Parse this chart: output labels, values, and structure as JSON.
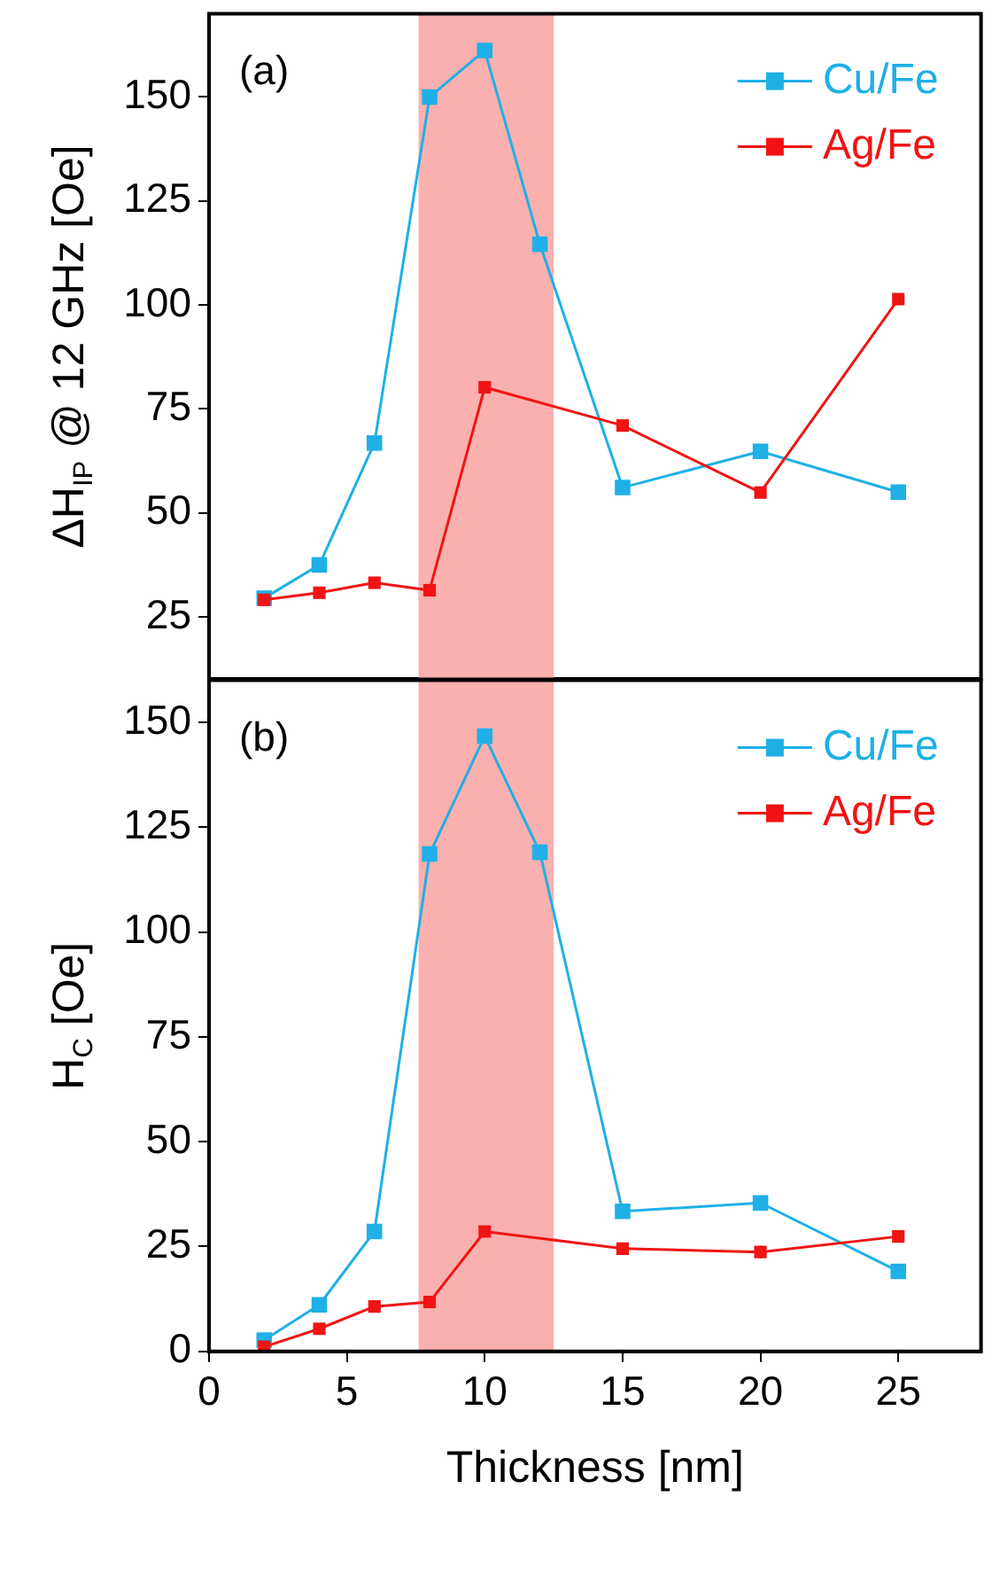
{
  "chart_data": [
    {
      "type": "line",
      "ylabel": "ΔH$_{IP}$ @ 12 GHz [Oe]",
      "annotations": [
        "(a)"
      ],
      "x": [
        2,
        4,
        6,
        8,
        10,
        12,
        15,
        20,
        25
      ],
      "xlim": [
        0,
        28
      ],
      "xticks": [
        0,
        5,
        10,
        15,
        20,
        25
      ],
      "ylim": [
        10,
        170
      ],
      "yticks": [
        25,
        50,
        75,
        100,
        125,
        150
      ],
      "tick_labels": "y",
      "marker": "square",
      "legend": "top right",
      "grid": false,
      "bands": [
        {
          "axis": "x",
          "from": 7.6,
          "to": 12.5,
          "color": "#fbb0b0"
        }
      ],
      "series": [
        {
          "name": "Cu/Fe",
          "color": "#1eb0e6",
          "values": [
            29.5,
            37.5,
            66.8,
            150,
            161.2,
            114.6,
            56.1,
            64.8,
            55
          ]
        },
        {
          "name": "Ag/Fe",
          "color": "#f01414",
          "x": [
            2,
            4,
            6,
            8,
            10,
            15,
            20,
            25
          ],
          "values": [
            29.1,
            30.8,
            33.2,
            31.4,
            80.2,
            71,
            54.9,
            101.4
          ]
        }
      ]
    },
    {
      "type": "line",
      "xlabel": "Thickness [nm]",
      "ylabel": "H$_{C}$ [Oe]",
      "annotations": [
        "(b)"
      ],
      "x": [
        2,
        4,
        6,
        8,
        10,
        12,
        15,
        20,
        25
      ],
      "xlim": [
        0,
        28
      ],
      "xticks": [
        0,
        5,
        10,
        15,
        20,
        25
      ],
      "ylim": [
        0,
        160
      ],
      "yticks": [
        0,
        25,
        50,
        75,
        100,
        125,
        150
      ],
      "marker": "square",
      "legend": "top right",
      "grid": false,
      "bands": [
        {
          "axis": "x",
          "from": 7.6,
          "to": 12.5,
          "color": "#fbb0b0"
        }
      ],
      "series": [
        {
          "name": "Cu/Fe",
          "color": "#1eb0e6",
          "values": [
            2.7,
            11.1,
            28.6,
            118.6,
            146.7,
            119,
            33.4,
            35.4,
            19.1
          ]
        },
        {
          "name": "Ag/Fe",
          "color": "#f01414",
          "x": [
            2,
            4,
            6,
            8,
            10,
            15,
            20,
            25
          ],
          "values": [
            1.1,
            5.4,
            10.7,
            11.8,
            28.6,
            24.5,
            23.7,
            27.4
          ]
        }
      ]
    }
  ]
}
